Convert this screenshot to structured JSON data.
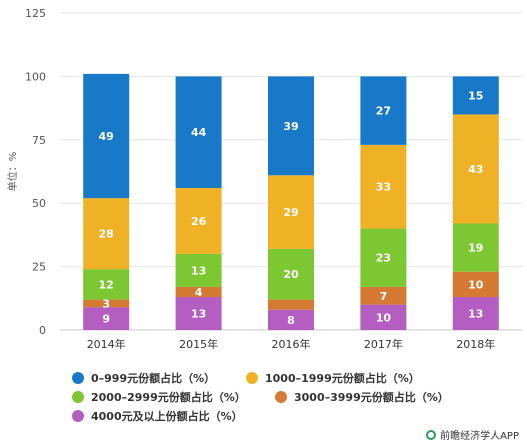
{
  "chart_data": {
    "type": "bar",
    "stacked": true,
    "categories": [
      "2014年",
      "2015年",
      "2016年",
      "2017年",
      "2018年"
    ],
    "series": [
      {
        "name": "4000元及以上份额占比（%）",
        "color": "#b55ec1",
        "values": [
          9,
          13,
          8,
          10,
          13
        ]
      },
      {
        "name": "3000–3999元份额占比（%）",
        "color": "#d47a32",
        "values": [
          3,
          4,
          4,
          7,
          10
        ]
      },
      {
        "name": "2000–2999元份额占比（%）",
        "color": "#7dc832",
        "values": [
          12,
          13,
          20,
          23,
          19
        ]
      },
      {
        "name": "1000–1999元份额占比（%）",
        "color": "#efb125",
        "values": [
          28,
          26,
          29,
          33,
          43
        ]
      },
      {
        "name": "0–999元份额占比（%）",
        "color": "#1979c9",
        "values": [
          49,
          44,
          39,
          27,
          15
        ]
      }
    ],
    "series_data_labels": [
      [
        "9",
        "13",
        "8",
        "10",
        "13"
      ],
      [
        "3",
        "4",
        "",
        "7",
        "10"
      ],
      [
        "12",
        "13",
        "20",
        "23",
        "19"
      ],
      [
        "28",
        "26",
        "29",
        "33",
        "43"
      ],
      [
        "49",
        "44",
        "39",
        "27",
        "15"
      ]
    ],
    "ylabel": "单位：%",
    "yticks": [
      "0",
      "25",
      "50",
      "75",
      "100",
      "125"
    ],
    "ylim": [
      0,
      125
    ],
    "grid": true,
    "legend_position": "bottom"
  },
  "legend": {
    "items": [
      {
        "label": "0–999元份额占比（%）",
        "color": "#1979c9"
      },
      {
        "label": "1000–1999元份额占比（%）",
        "color": "#efb125"
      },
      {
        "label": "2000–2999元份额占比（%）",
        "color": "#7dc832"
      },
      {
        "label": "3000–3999元份额占比（%）",
        "color": "#d47a32"
      },
      {
        "label": "4000元及以上份额占比（%）",
        "color": "#b55ec1"
      }
    ]
  },
  "footer": {
    "text": "前瞻经济学人APP",
    "icon": "brand-logo-icon"
  }
}
